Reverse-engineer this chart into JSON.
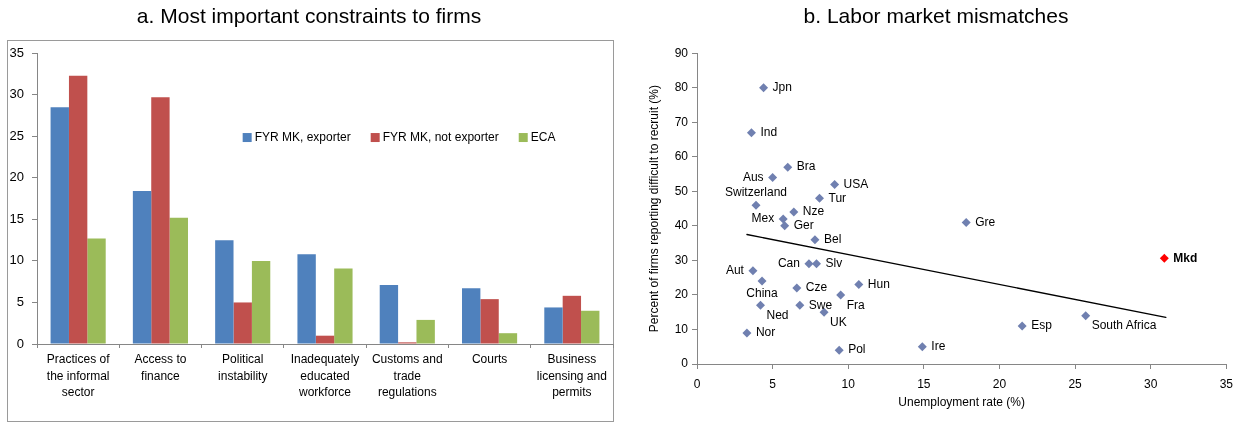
{
  "chart_data": [
    {
      "type": "bar",
      "title": "a. Most important constraints to firms",
      "categories": [
        "Practices of the informal sector",
        "Access to finance",
        "Political instability",
        "Inadequately educated workforce",
        "Customs and trade regulations",
        "Courts",
        "Business licensing and permits"
      ],
      "series": [
        {
          "name": "FYR MK, exporter",
          "color": "#4f81bd",
          "values": [
            28.5,
            18.4,
            12.5,
            10.8,
            7.1,
            6.7,
            4.4
          ]
        },
        {
          "name": "FYR MK, not exporter",
          "color": "#c0504d",
          "values": [
            32.3,
            29.7,
            5.0,
            1.0,
            0.2,
            5.4,
            5.8
          ]
        },
        {
          "name": "ECA",
          "color": "#9bbb59",
          "values": [
            12.7,
            15.2,
            10.0,
            9.1,
            2.9,
            1.3,
            4.0
          ]
        }
      ],
      "ylim": [
        0,
        35
      ],
      "yticks": [
        0,
        5,
        10,
        15,
        20,
        25,
        30,
        35
      ],
      "legend": "top right"
    },
    {
      "type": "scatter",
      "title": "b. Labor market mismatches",
      "xlabel": "Unemployment rate (%)",
      "ylabel": "Percent of firms reporting difficult to recruit (%)",
      "xlim": [
        0,
        35
      ],
      "xticks": [
        0,
        5,
        10,
        15,
        20,
        25,
        30,
        35
      ],
      "ylim": [
        0,
        90
      ],
      "yticks": [
        0,
        10,
        20,
        30,
        40,
        50,
        60,
        70,
        80,
        90
      ],
      "marker": "diamond",
      "series": [
        {
          "name": "Jpn",
          "color": "#7080b0",
          "x": [
            4.4
          ],
          "values": [
            80
          ]
        },
        {
          "name": "Ind",
          "color": "#7080b0",
          "x": [
            3.6
          ],
          "values": [
            67
          ]
        },
        {
          "name": "Bra",
          "color": "#7080b0",
          "x": [
            6.0
          ],
          "values": [
            57
          ]
        },
        {
          "name": "Aus",
          "color": "#7080b0",
          "x": [
            5.0
          ],
          "values": [
            54
          ]
        },
        {
          "name": "USA",
          "color": "#7080b0",
          "x": [
            9.1
          ],
          "values": [
            52
          ]
        },
        {
          "name": "Tur",
          "color": "#7080b0",
          "x": [
            8.1
          ],
          "values": [
            48
          ]
        },
        {
          "name": "Switzerland",
          "color": "#7080b0",
          "x": [
            3.9
          ],
          "values": [
            46
          ]
        },
        {
          "name": "Nze",
          "color": "#7080b0",
          "x": [
            6.4
          ],
          "values": [
            44
          ]
        },
        {
          "name": "Mex",
          "color": "#7080b0",
          "x": [
            5.7
          ],
          "values": [
            42
          ]
        },
        {
          "name": "Ger",
          "color": "#7080b0",
          "x": [
            5.8
          ],
          "values": [
            40
          ]
        },
        {
          "name": "Gre",
          "color": "#7080b0",
          "x": [
            17.8
          ],
          "values": [
            41
          ]
        },
        {
          "name": "Bel",
          "color": "#7080b0",
          "x": [
            7.8
          ],
          "values": [
            36
          ]
        },
        {
          "name": "Can",
          "color": "#7080b0",
          "x": [
            7.4
          ],
          "values": [
            29
          ]
        },
        {
          "name": "Slv",
          "color": "#7080b0",
          "x": [
            7.9
          ],
          "values": [
            29
          ]
        },
        {
          "name": "Mkd",
          "color": "#ff0000",
          "x": [
            30.9
          ],
          "values": [
            30.6
          ]
        },
        {
          "name": "Aut",
          "color": "#7080b0",
          "x": [
            3.7
          ],
          "values": [
            27
          ]
        },
        {
          "name": "China",
          "color": "#7080b0",
          "x": [
            4.3
          ],
          "values": [
            24
          ]
        },
        {
          "name": "Hun",
          "color": "#7080b0",
          "x": [
            10.7
          ],
          "values": [
            23
          ]
        },
        {
          "name": "Cze",
          "color": "#7080b0",
          "x": [
            6.6
          ],
          "values": [
            22
          ]
        },
        {
          "name": "Fra",
          "color": "#7080b0",
          "x": [
            9.5
          ],
          "values": [
            20
          ]
        },
        {
          "name": "Ned",
          "color": "#7080b0",
          "x": [
            4.2
          ],
          "values": [
            17
          ]
        },
        {
          "name": "Swe",
          "color": "#7080b0",
          "x": [
            6.8
          ],
          "values": [
            17
          ]
        },
        {
          "name": "UK",
          "color": "#7080b0",
          "x": [
            8.4
          ],
          "values": [
            15
          ]
        },
        {
          "name": "South Africa",
          "color": "#7080b0",
          "x": [
            25.7
          ],
          "values": [
            14
          ]
        },
        {
          "name": "Esp",
          "color": "#7080b0",
          "x": [
            21.5
          ],
          "values": [
            11
          ]
        },
        {
          "name": "Nor",
          "color": "#7080b0",
          "x": [
            3.3
          ],
          "values": [
            9
          ]
        },
        {
          "name": "Ire",
          "color": "#7080b0",
          "x": [
            14.9
          ],
          "values": [
            5
          ]
        },
        {
          "name": "Pol",
          "color": "#7080b0",
          "x": [
            9.4
          ],
          "values": [
            4
          ]
        },
        {
          "type": "line",
          "color": "#000000",
          "marker": "none",
          "x": [
            3.3,
            31
          ],
          "values": [
            37.5,
            13.5
          ]
        }
      ]
    }
  ]
}
